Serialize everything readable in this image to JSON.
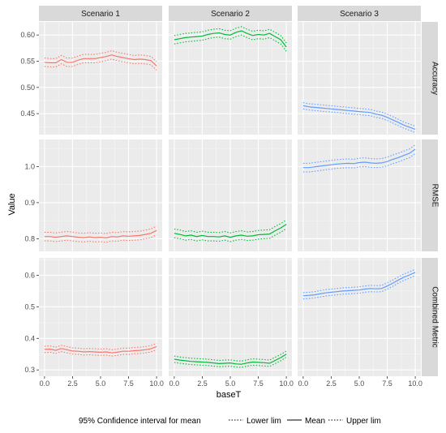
{
  "chart_data": {
    "type": "line",
    "xlabel": "baseT",
    "ylabel": "Value",
    "x_ticks": [
      "0.0",
      "2.5",
      "5.0",
      "7.5",
      "10.0"
    ],
    "columns": [
      "Scenario 1",
      "Scenario 2",
      "Scenario 3"
    ],
    "rows": [
      {
        "label": "Accuracy",
        "ylim": [
          0.41,
          0.625
        ],
        "y_ticks": [
          0.45,
          0.5,
          0.55,
          0.6
        ],
        "y_tick_labels": [
          "0.45",
          "0.50",
          "0.55",
          "0.60"
        ]
      },
      {
        "label": "RMSE",
        "ylim": [
          0.765,
          1.075
        ],
        "y_ticks": [
          0.8,
          0.9,
          1.0
        ],
        "y_tick_labels": [
          "0.8",
          "0.9",
          "1.0"
        ]
      },
      {
        "label": "Combined Metric",
        "ylim": [
          0.28,
          0.655
        ],
        "y_ticks": [
          0.3,
          0.4,
          0.5,
          0.6
        ],
        "y_tick_labels": [
          "0.3",
          "0.4",
          "0.5",
          "0.6"
        ]
      }
    ],
    "x": [
      0,
      0.5,
      1,
      1.5,
      2,
      2.5,
      3,
      3.5,
      4,
      4.5,
      5,
      5.5,
      6,
      6.5,
      7,
      7.5,
      8,
      8.5,
      9,
      9.5,
      10
    ],
    "series_colors": [
      "#F8766D",
      "#00BA38",
      "#619CFF"
    ],
    "panels": [
      {
        "row": 0,
        "col": 0,
        "ci": 0.008,
        "mean": [
          0.548,
          0.547,
          0.547,
          0.553,
          0.548,
          0.548,
          0.552,
          0.555,
          0.555,
          0.555,
          0.557,
          0.559,
          0.562,
          0.559,
          0.557,
          0.555,
          0.553,
          0.554,
          0.553,
          0.551,
          0.541
        ]
      },
      {
        "row": 0,
        "col": 1,
        "ci": 0.008,
        "mean": [
          0.591,
          0.593,
          0.595,
          0.596,
          0.597,
          0.598,
          0.601,
          0.603,
          0.604,
          0.601,
          0.6,
          0.605,
          0.608,
          0.603,
          0.599,
          0.601,
          0.6,
          0.603,
          0.597,
          0.591,
          0.577
        ]
      },
      {
        "row": 0,
        "col": 2,
        "ci": 0.006,
        "mean": [
          0.465,
          0.463,
          0.462,
          0.461,
          0.46,
          0.459,
          0.458,
          0.457,
          0.456,
          0.455,
          0.454,
          0.453,
          0.452,
          0.449,
          0.447,
          0.443,
          0.438,
          0.433,
          0.428,
          0.424,
          0.42
        ]
      },
      {
        "row": 1,
        "col": 0,
        "ci": 0.012,
        "mean": [
          0.806,
          0.806,
          0.804,
          0.806,
          0.808,
          0.806,
          0.804,
          0.803,
          0.805,
          0.803,
          0.804,
          0.802,
          0.806,
          0.805,
          0.808,
          0.807,
          0.808,
          0.809,
          0.812,
          0.815,
          0.823
        ]
      },
      {
        "row": 1,
        "col": 1,
        "ci": 0.012,
        "mean": [
          0.815,
          0.812,
          0.808,
          0.81,
          0.806,
          0.809,
          0.806,
          0.806,
          0.805,
          0.808,
          0.804,
          0.808,
          0.81,
          0.807,
          0.808,
          0.811,
          0.812,
          0.813,
          0.822,
          0.83,
          0.84
        ]
      },
      {
        "row": 1,
        "col": 2,
        "ci": 0.012,
        "mean": [
          0.997,
          0.997,
          0.999,
          1.001,
          1.003,
          1.005,
          1.007,
          1.008,
          1.009,
          1.008,
          1.011,
          1.012,
          1.01,
          1.009,
          1.01,
          1.014,
          1.02,
          1.025,
          1.031,
          1.037,
          1.048
        ]
      },
      {
        "row": 2,
        "col": 0,
        "ci": 0.01,
        "mean": [
          0.365,
          0.366,
          0.362,
          0.368,
          0.364,
          0.36,
          0.359,
          0.357,
          0.358,
          0.357,
          0.356,
          0.357,
          0.354,
          0.356,
          0.359,
          0.359,
          0.361,
          0.362,
          0.364,
          0.367,
          0.374
        ]
      },
      {
        "row": 2,
        "col": 1,
        "ci": 0.01,
        "mean": [
          0.334,
          0.331,
          0.329,
          0.327,
          0.326,
          0.325,
          0.324,
          0.322,
          0.32,
          0.321,
          0.322,
          0.319,
          0.318,
          0.322,
          0.325,
          0.324,
          0.323,
          0.321,
          0.33,
          0.339,
          0.35
        ]
      },
      {
        "row": 2,
        "col": 2,
        "ci": 0.01,
        "mean": [
          0.535,
          0.536,
          0.538,
          0.541,
          0.544,
          0.546,
          0.548,
          0.55,
          0.551,
          0.552,
          0.553,
          0.556,
          0.558,
          0.557,
          0.558,
          0.566,
          0.575,
          0.585,
          0.594,
          0.601,
          0.609
        ]
      }
    ],
    "legend": {
      "position": "bottom",
      "title": "95% Confidence interval for mean",
      "items": [
        {
          "label": "Lower lim",
          "linetype": "dotted"
        },
        {
          "label": "Mean",
          "linetype": "solid"
        },
        {
          "label": "Upper lim",
          "linetype": "dotted"
        }
      ]
    },
    "grid": true
  }
}
